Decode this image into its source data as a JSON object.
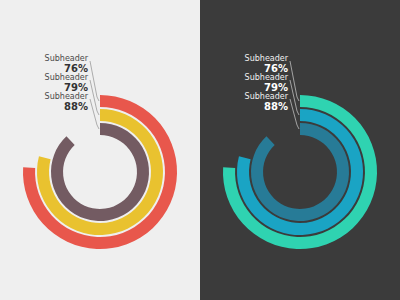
{
  "chart_data": [
    {
      "type": "radial_bar",
      "categories": [
        "Subheader",
        "Subheader",
        "Subheader"
      ],
      "values": [
        76,
        79,
        88
      ],
      "value_labels": [
        "76%",
        "79%",
        "88%"
      ],
      "colors": [
        "#e8574c",
        "#e9c22f",
        "#735b62"
      ],
      "ylim": [
        0,
        100
      ],
      "data_labels": true,
      "tick_labels": false
    },
    {
      "type": "radial_bar",
      "categories": [
        "Subheader",
        "Subheader",
        "Subheader"
      ],
      "values": [
        76,
        79,
        88
      ],
      "value_labels": [
        "76%",
        "79%",
        "88%"
      ],
      "colors": [
        "#2fd3b1",
        "#1aa4c4",
        "#277b97"
      ],
      "ylim": [
        0,
        100
      ],
      "data_labels": true,
      "tick_labels": false
    }
  ]
}
